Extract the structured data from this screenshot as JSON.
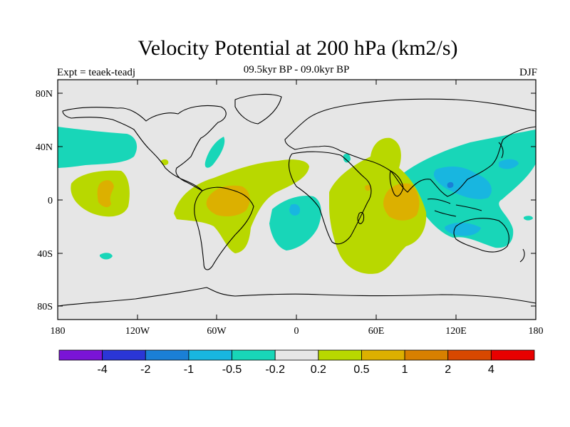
{
  "title": "Velocity Potential at 200 hPa (km2/s)",
  "subtitle": "09.5kyr BP - 09.0kyr BP",
  "left_label": "Expt = teaek-teadj",
  "right_label": "DJF",
  "map": {
    "projection": "cylindrical equidistant",
    "lon_range": [
      -180,
      180
    ],
    "lat_range": [
      -90,
      90
    ],
    "y_ticks": [
      "80N",
      "40N",
      "0",
      "40S",
      "80S"
    ],
    "x_ticks": [
      "180",
      "120W",
      "60W",
      "0",
      "60E",
      "120E",
      "180"
    ],
    "background_color": "#e6e6e6"
  },
  "colorbar": {
    "colors": [
      "#7a14d6",
      "#2a36d6",
      "#1a7fd6",
      "#18b6e0",
      "#18d6b8",
      "#e6e6e6",
      "#b8d800",
      "#dcb000",
      "#d88000",
      "#d84800",
      "#e80000"
    ],
    "labels": [
      "-4",
      "-2",
      "-1",
      "-0.5",
      "-0.2",
      "0.2",
      "0.5",
      "1",
      "2",
      "4"
    ]
  }
}
